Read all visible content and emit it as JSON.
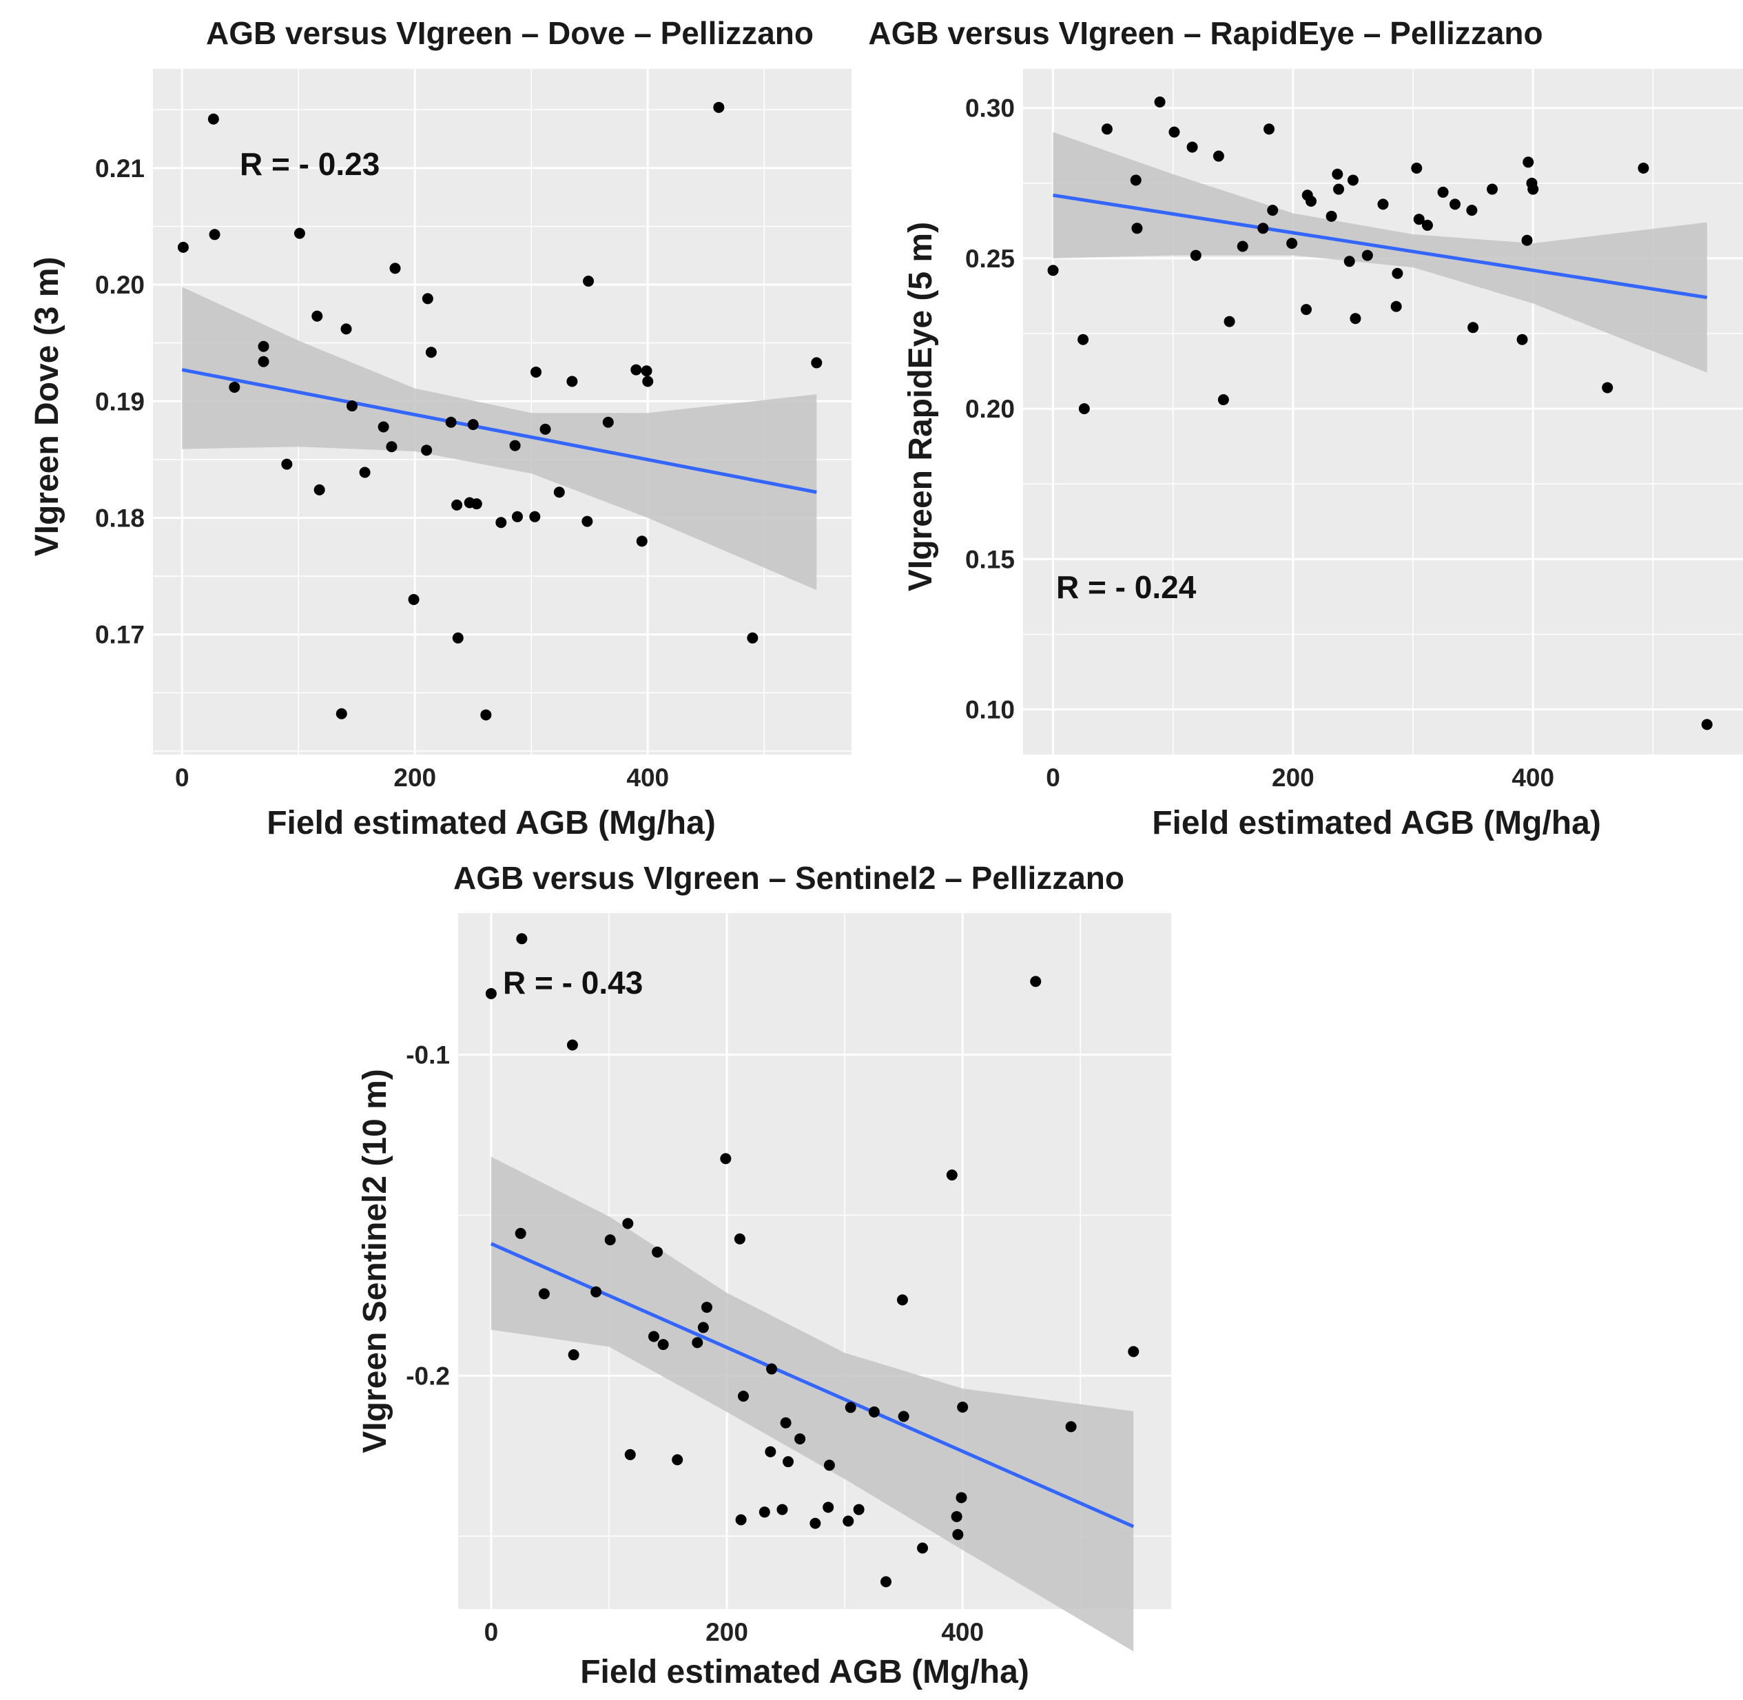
{
  "colors": {
    "panel_background": "#ebebeb",
    "grid": "#ffffff",
    "points": "#000000",
    "fit_line": "#3366ff",
    "confidence_band": "#c4c4c4"
  },
  "chart_data": [
    {
      "type": "scatter",
      "title": "AGB versus VIgreen – Dove – Pellizzano",
      "xlabel": "Field estimated AGB (Mg/ha)",
      "ylabel": "VIgreen Dove (3 m)",
      "annotation": "R = - 0.23",
      "xlim": [
        -25,
        575
      ],
      "ylim": [
        0.1597,
        0.2185
      ],
      "x_ticks": [
        0,
        200,
        400
      ],
      "x_tick_labels": [
        "0",
        "200",
        "400"
      ],
      "y_ticks": [
        0.17,
        0.18,
        0.19,
        0.2,
        0.21
      ],
      "y_tick_labels": [
        "0.17",
        "0.18",
        "0.19",
        "0.20",
        "0.21"
      ],
      "grid": true,
      "points": [
        {
          "x": 1,
          "y": 0.2032
        },
        {
          "x": 27,
          "y": 0.2142
        },
        {
          "x": 28,
          "y": 0.2043
        },
        {
          "x": 45,
          "y": 0.1912
        },
        {
          "x": 70,
          "y": 0.1947
        },
        {
          "x": 70,
          "y": 0.1934
        },
        {
          "x": 90,
          "y": 0.1846
        },
        {
          "x": 101,
          "y": 0.2044
        },
        {
          "x": 116,
          "y": 0.1973
        },
        {
          "x": 118,
          "y": 0.1824
        },
        {
          "x": 141,
          "y": 0.1962
        },
        {
          "x": 146,
          "y": 0.1896
        },
        {
          "x": 157,
          "y": 0.1839
        },
        {
          "x": 173,
          "y": 0.1878
        },
        {
          "x": 180,
          "y": 0.1861
        },
        {
          "x": 183,
          "y": 0.2014
        },
        {
          "x": 210,
          "y": 0.1858
        },
        {
          "x": 211,
          "y": 0.1988
        },
        {
          "x": 214,
          "y": 0.1942
        },
        {
          "x": 199,
          "y": 0.173
        },
        {
          "x": 137,
          "y": 0.1632
        },
        {
          "x": 231,
          "y": 0.1882
        },
        {
          "x": 236,
          "y": 0.1811
        },
        {
          "x": 237,
          "y": 0.1697
        },
        {
          "x": 247,
          "y": 0.1813
        },
        {
          "x": 250,
          "y": 0.188
        },
        {
          "x": 253,
          "y": 0.1812
        },
        {
          "x": 261,
          "y": 0.1631
        },
        {
          "x": 274,
          "y": 0.1796
        },
        {
          "x": 286,
          "y": 0.1862
        },
        {
          "x": 288,
          "y": 0.1801
        },
        {
          "x": 303,
          "y": 0.1801
        },
        {
          "x": 304,
          "y": 0.1925
        },
        {
          "x": 312,
          "y": 0.1876
        },
        {
          "x": 324,
          "y": 0.1822
        },
        {
          "x": 335,
          "y": 0.1917
        },
        {
          "x": 348,
          "y": 0.1797
        },
        {
          "x": 349,
          "y": 0.2003
        },
        {
          "x": 366,
          "y": 0.1882
        },
        {
          "x": 390,
          "y": 0.1927
        },
        {
          "x": 395,
          "y": 0.178
        },
        {
          "x": 399,
          "y": 0.1926
        },
        {
          "x": 400,
          "y": 0.1917
        },
        {
          "x": 461,
          "y": 0.2152
        },
        {
          "x": 490,
          "y": 0.1697
        },
        {
          "x": 545,
          "y": 0.1933
        }
      ],
      "fit": {
        "x": [
          0,
          545
        ],
        "y": [
          0.1927,
          0.1822
        ]
      },
      "band": {
        "x": [
          0,
          100,
          200,
          300,
          400,
          545
        ],
        "lower": [
          0.1859,
          0.1861,
          0.1857,
          0.1838,
          0.18,
          0.1738
        ],
        "upper": [
          0.1998,
          0.1952,
          0.1911,
          0.189,
          0.189,
          0.1906
        ]
      }
    },
    {
      "type": "scatter",
      "title": "AGB versus VIgreen – RapidEye – Pellizzano",
      "xlabel": "Field estimated AGB (Mg/ha)",
      "ylabel": "VIgreen RapidEye (5 m)",
      "annotation": "R = - 0.24",
      "xlim": [
        -25,
        575
      ],
      "ylim": [
        0.085,
        0.313
      ],
      "x_ticks": [
        0,
        200,
        400
      ],
      "x_tick_labels": [
        "0",
        "200",
        "400"
      ],
      "y_ticks": [
        0.1,
        0.15,
        0.2,
        0.25,
        0.3
      ],
      "y_tick_labels": [
        "0.10",
        "0.15",
        "0.20",
        "0.25",
        "0.30"
      ],
      "grid": true,
      "points": [
        {
          "x": 0,
          "y": 0.246
        },
        {
          "x": 25,
          "y": 0.223
        },
        {
          "x": 26,
          "y": 0.2
        },
        {
          "x": 45,
          "y": 0.293
        },
        {
          "x": 69,
          "y": 0.276
        },
        {
          "x": 70,
          "y": 0.26
        },
        {
          "x": 89,
          "y": 0.302
        },
        {
          "x": 101,
          "y": 0.292
        },
        {
          "x": 116,
          "y": 0.287
        },
        {
          "x": 119,
          "y": 0.251
        },
        {
          "x": 138,
          "y": 0.284
        },
        {
          "x": 142,
          "y": 0.203
        },
        {
          "x": 147,
          "y": 0.229
        },
        {
          "x": 158,
          "y": 0.254
        },
        {
          "x": 175,
          "y": 0.26
        },
        {
          "x": 180,
          "y": 0.293
        },
        {
          "x": 183,
          "y": 0.266
        },
        {
          "x": 199,
          "y": 0.255
        },
        {
          "x": 211,
          "y": 0.233
        },
        {
          "x": 212,
          "y": 0.271
        },
        {
          "x": 215,
          "y": 0.269
        },
        {
          "x": 232,
          "y": 0.264
        },
        {
          "x": 237,
          "y": 0.278
        },
        {
          "x": 238,
          "y": 0.273
        },
        {
          "x": 247,
          "y": 0.249
        },
        {
          "x": 250,
          "y": 0.276
        },
        {
          "x": 252,
          "y": 0.23
        },
        {
          "x": 262,
          "y": 0.251
        },
        {
          "x": 275,
          "y": 0.268
        },
        {
          "x": 286,
          "y": 0.234
        },
        {
          "x": 287,
          "y": 0.245
        },
        {
          "x": 303,
          "y": 0.28
        },
        {
          "x": 305,
          "y": 0.263
        },
        {
          "x": 312,
          "y": 0.261
        },
        {
          "x": 325,
          "y": 0.272
        },
        {
          "x": 335,
          "y": 0.268
        },
        {
          "x": 349,
          "y": 0.266
        },
        {
          "x": 350,
          "y": 0.227
        },
        {
          "x": 366,
          "y": 0.273
        },
        {
          "x": 391,
          "y": 0.223
        },
        {
          "x": 395,
          "y": 0.256
        },
        {
          "x": 396,
          "y": 0.282
        },
        {
          "x": 399,
          "y": 0.275
        },
        {
          "x": 400,
          "y": 0.273
        },
        {
          "x": 462,
          "y": 0.207
        },
        {
          "x": 492,
          "y": 0.28
        },
        {
          "x": 545,
          "y": 0.095
        }
      ],
      "fit": {
        "x": [
          0,
          545
        ],
        "y": [
          0.271,
          0.237
        ]
      },
      "band": {
        "x": [
          0,
          100,
          200,
          300,
          400,
          545
        ],
        "lower": [
          0.25,
          0.251,
          0.251,
          0.247,
          0.235,
          0.212
        ],
        "upper": [
          0.292,
          0.278,
          0.265,
          0.258,
          0.255,
          0.262
        ]
      }
    },
    {
      "type": "scatter",
      "title": "AGB versus VIgreen – Sentinel2 – Pellizzano",
      "xlabel": "Field estimated AGB (Mg/ha)",
      "ylabel": "VIgreen Sentinel2 (10 m)",
      "annotation": "R = - 0.43",
      "xlim": [
        -28,
        577
      ],
      "ylim": [
        -0.2727,
        -0.0559
      ],
      "x_ticks": [
        0,
        200,
        400
      ],
      "x_tick_labels": [
        "0",
        "200",
        "400"
      ],
      "y_ticks": [
        -0.1,
        -0.2
      ],
      "y_tick_labels": [
        "-0.1",
        "-0.2"
      ],
      "grid": true,
      "points": [
        {
          "x": 0,
          "y": -0.081
        },
        {
          "x": 26,
          "y": -0.0639
        },
        {
          "x": 25,
          "y": -0.1557
        },
        {
          "x": 45,
          "y": -0.1745
        },
        {
          "x": 69,
          "y": -0.097
        },
        {
          "x": 70,
          "y": -0.1935
        },
        {
          "x": 89,
          "y": -0.1739
        },
        {
          "x": 101,
          "y": -0.1577
        },
        {
          "x": 116,
          "y": -0.1526
        },
        {
          "x": 118,
          "y": -0.2246
        },
        {
          "x": 138,
          "y": -0.1878
        },
        {
          "x": 141,
          "y": -0.1615
        },
        {
          "x": 146,
          "y": -0.1903
        },
        {
          "x": 158,
          "y": -0.2262
        },
        {
          "x": 175,
          "y": -0.1897
        },
        {
          "x": 180,
          "y": -0.185
        },
        {
          "x": 183,
          "y": -0.1787
        },
        {
          "x": 199,
          "y": -0.1324
        },
        {
          "x": 211,
          "y": -0.1574
        },
        {
          "x": 214,
          "y": -0.2064
        },
        {
          "x": 212,
          "y": -0.2449
        },
        {
          "x": 232,
          "y": -0.2425
        },
        {
          "x": 237,
          "y": -0.2237
        },
        {
          "x": 238,
          "y": -0.1979
        },
        {
          "x": 247,
          "y": -0.2417
        },
        {
          "x": 250,
          "y": -0.2147
        },
        {
          "x": 252,
          "y": -0.2268
        },
        {
          "x": 262,
          "y": -0.2197
        },
        {
          "x": 275,
          "y": -0.246
        },
        {
          "x": 286,
          "y": -0.241
        },
        {
          "x": 287,
          "y": -0.2279
        },
        {
          "x": 303,
          "y": -0.2453
        },
        {
          "x": 305,
          "y": -0.2099
        },
        {
          "x": 312,
          "y": -0.2417
        },
        {
          "x": 325,
          "y": -0.2113
        },
        {
          "x": 335,
          "y": -0.2642
        },
        {
          "x": 349,
          "y": -0.1764
        },
        {
          "x": 350,
          "y": -0.2127
        },
        {
          "x": 366,
          "y": -0.2537
        },
        {
          "x": 391,
          "y": -0.1375
        },
        {
          "x": 395,
          "y": -0.2439
        },
        {
          "x": 396,
          "y": -0.2495
        },
        {
          "x": 399,
          "y": -0.238
        },
        {
          "x": 400,
          "y": -0.2098
        },
        {
          "x": 462,
          "y": -0.0772
        },
        {
          "x": 492,
          "y": -0.2159
        },
        {
          "x": 545,
          "y": -0.1925
        }
      ],
      "fit": {
        "x": [
          0,
          545
        ],
        "y": [
          -0.1589,
          -0.247
        ]
      },
      "band": {
        "x": [
          0,
          100,
          200,
          300,
          400,
          545
        ],
        "lower": [
          -0.1857,
          -0.191,
          -0.2113,
          -0.2322,
          -0.2543,
          -0.2859
        ],
        "upper": [
          -0.1318,
          -0.1504,
          -0.1742,
          -0.1929,
          -0.204,
          -0.2111
        ]
      }
    }
  ]
}
